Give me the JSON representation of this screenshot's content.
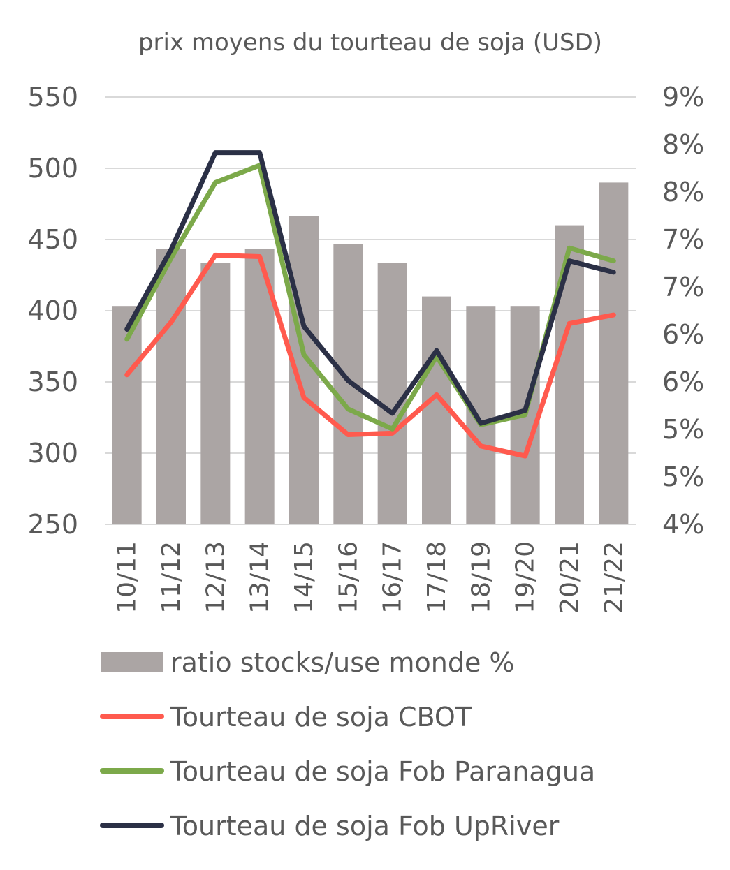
{
  "chart_data": {
    "type": "bar+line",
    "title": "prix moyens du tourteau de soja (USD)",
    "categories": [
      "10/11",
      "11/12",
      "12/13",
      "13/14",
      "14/15",
      "15/16",
      "16/17",
      "17/18",
      "18/19",
      "19/20",
      "20/21",
      "21/22"
    ],
    "y_left": {
      "min": 250,
      "max": 550,
      "step": 50,
      "ticks": [
        "550",
        "500",
        "450",
        "400",
        "350",
        "300",
        "250"
      ]
    },
    "y_right": {
      "min": 4.0,
      "max": 8.5,
      "ticks": [
        "9%",
        "8%",
        "8%",
        "7%",
        "7%",
        "6%",
        "6%",
        "5%",
        "5%",
        "4%"
      ]
    },
    "grid": true,
    "legend_position": "bottom",
    "bars": {
      "name": "ratio stocks/use monde %",
      "axis": "right",
      "color": "#aba5a4",
      "values": [
        6.3,
        6.9,
        6.75,
        6.9,
        7.25,
        6.95,
        6.75,
        6.4,
        6.3,
        6.3,
        7.15,
        7.6
      ]
    },
    "series": [
      {
        "name": "Tourteau de soja CBOT",
        "axis": "left",
        "color": "#ff5a4e",
        "values": [
          355,
          392,
          439,
          438,
          339,
          313,
          314,
          341,
          305,
          298,
          391,
          397
        ]
      },
      {
        "name": "Tourteau de soja Fob Paranagua",
        "axis": "left",
        "color": "#7ca94a",
        "values": [
          380,
          437,
          490,
          502,
          369,
          331,
          317,
          368,
          320,
          327,
          444,
          435
        ]
      },
      {
        "name": "Tourteau de soja Fob UpRiver",
        "axis": "left",
        "color": "#2b3046",
        "values": [
          387,
          443,
          511,
          511,
          389,
          351,
          328,
          372,
          321,
          330,
          435,
          427
        ]
      }
    ]
  }
}
